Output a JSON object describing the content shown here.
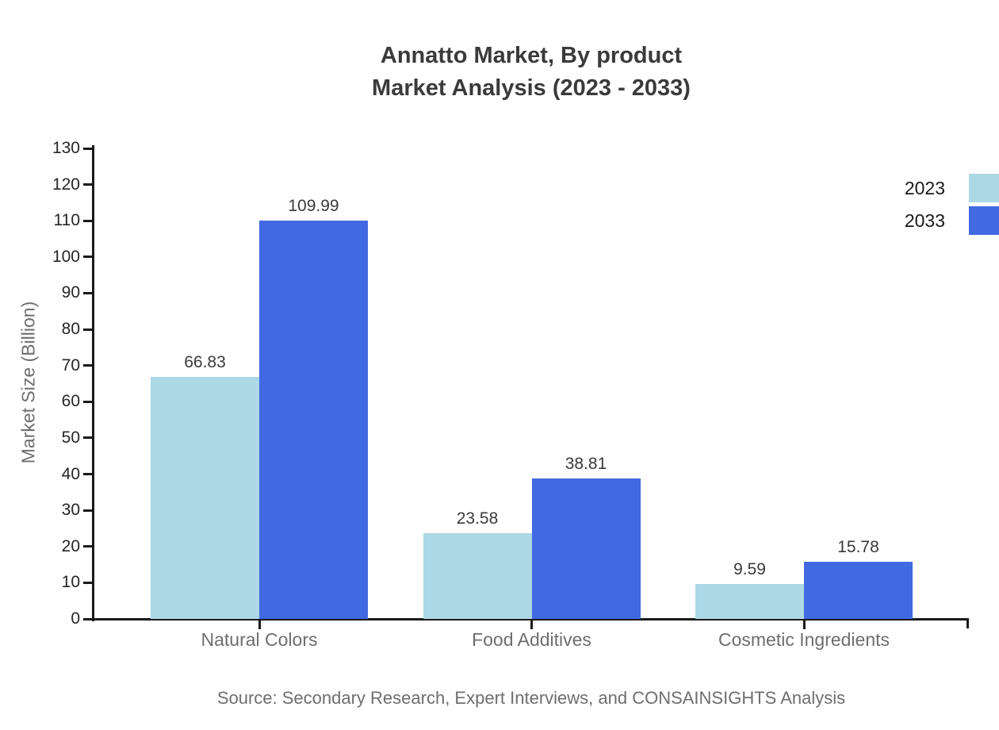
{
  "chart_data": {
    "type": "bar",
    "title": "Annatto Market, By product Market Analysis (2023 - 2033)",
    "title_lines": [
      "Annatto Market, By product",
      "Market Analysis (2023 - 2033)"
    ],
    "ylabel": "Market Size (Billion)",
    "xlabel": "",
    "categories": [
      "Natural Colors",
      "Food Additives",
      "Cosmetic Ingredients"
    ],
    "series": [
      {
        "name": "2023",
        "color": "#ADD8E6",
        "values": [
          66.83,
          23.58,
          9.59
        ]
      },
      {
        "name": "2033",
        "color": "#4169E1",
        "values": [
          109.99,
          38.81,
          15.78
        ]
      }
    ],
    "value_labels": [
      "66.83",
      "109.99",
      "23.58",
      "38.81",
      "9.59",
      "15.78"
    ],
    "ylim": [
      0,
      130
    ],
    "ytick_step": 10,
    "ytick_labels": [
      "0",
      "10",
      "20",
      "30",
      "40",
      "50",
      "60",
      "70",
      "80",
      "90",
      "100",
      "110",
      "120",
      "130"
    ],
    "grid": false,
    "legend_position": "upper-right-outside",
    "source_note": "Source: Secondary Research, Expert Interviews, and CONSAINSIGHTS Analysis"
  },
  "colors": {
    "series_2023": "#ADD8E6",
    "series_2033": "#4169E1",
    "axis": "#1a1a1a",
    "title_text": "#3a3a3a",
    "muted_text": "#6e6e6e"
  }
}
